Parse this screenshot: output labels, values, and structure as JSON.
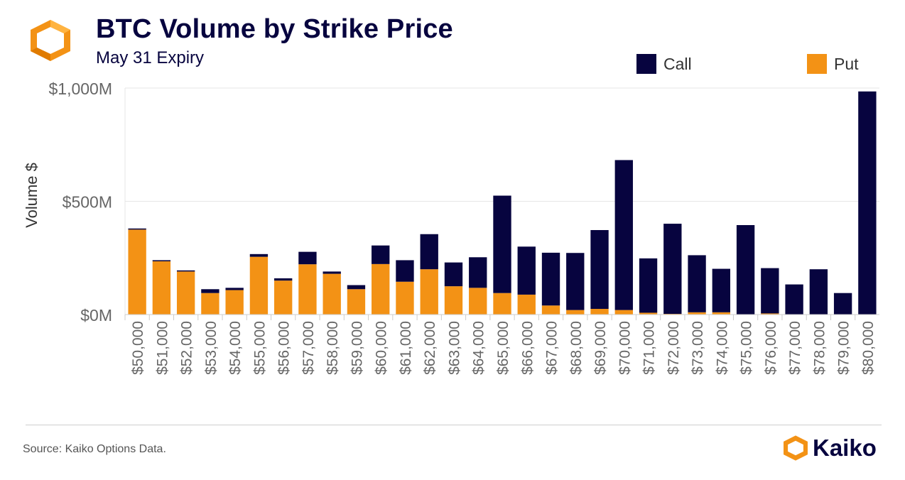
{
  "header": {
    "title": "BTC Volume by Strike Price",
    "subtitle": "May 31 Expiry"
  },
  "footer": {
    "source": "Source: Kaiko Options Data.",
    "brand": "Kaiko"
  },
  "colors": {
    "call": "#07043f",
    "put": "#f39215",
    "grid": "#e6e6e6",
    "axis_text": "#666666"
  },
  "icons": {
    "logo": "kaiko-logo-icon",
    "brand": "kaiko-brand-icon"
  },
  "chart_data": {
    "type": "bar",
    "stacked": true,
    "ylabel": "Volume $",
    "ylim": [
      0,
      1000
    ],
    "yticks": [
      0,
      500,
      1000
    ],
    "ytick_labels": [
      "$0M",
      "$500M",
      "$1,000M"
    ],
    "grid": true,
    "legend": "top-right",
    "categories": [
      "$50,000",
      "$51,000",
      "$52,000",
      "$53,000",
      "$54,000",
      "$55,000",
      "$56,000",
      "$57,000",
      "$58,000",
      "$59,000",
      "$60,000",
      "$61,000",
      "$62,000",
      "$63,000",
      "$64,000",
      "$65,000",
      "$66,000",
      "$67,000",
      "$68,000",
      "$69,000",
      "$70,000",
      "$71,000",
      "$72,000",
      "$73,000",
      "$74,000",
      "$75,000",
      "$76,000",
      "$77,000",
      "$78,000",
      "$79,000",
      "$80,000"
    ],
    "series": [
      {
        "name": "Put",
        "color": "#f39215",
        "values": [
          375,
          235,
          190,
          95,
          108,
          255,
          150,
          222,
          180,
          112,
          223,
          145,
          200,
          125,
          118,
          95,
          88,
          40,
          20,
          25,
          20,
          8,
          3,
          10,
          10,
          0,
          5,
          0,
          0,
          0,
          0
        ]
      },
      {
        "name": "Call",
        "color": "#07043f",
        "values": [
          5,
          5,
          5,
          17,
          10,
          12,
          10,
          55,
          10,
          18,
          82,
          95,
          155,
          105,
          135,
          430,
          212,
          233,
          252,
          348,
          662,
          240,
          398,
          252,
          192,
          395,
          200,
          133,
          200,
          95,
          985
        ]
      }
    ]
  }
}
